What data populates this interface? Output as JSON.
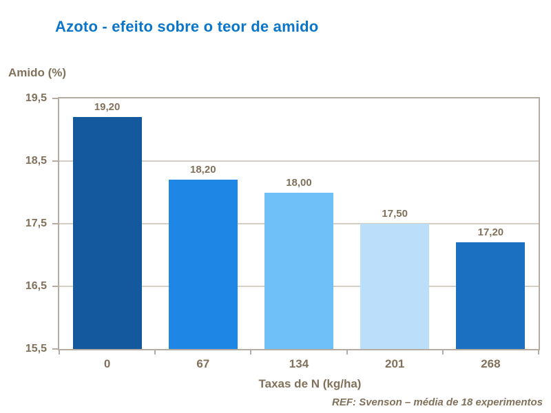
{
  "chart_data": {
    "type": "bar",
    "title": "Azoto - efeito sobre o teor de amido",
    "ylabel": "Amido (%)",
    "xlabel": "Taxas de N (kg/ha)",
    "categories": [
      "0",
      "67",
      "134",
      "201",
      "268"
    ],
    "values": [
      19.2,
      18.2,
      18.0,
      17.5,
      17.2
    ],
    "value_labels": [
      "19,20",
      "18,20",
      "18,00",
      "17,50",
      "17,20"
    ],
    "ytick_labels": [
      "19,5",
      "18,5",
      "17,5",
      "16,5",
      "15,5"
    ],
    "ylim": [
      15.5,
      19.5
    ],
    "grid": true,
    "legend": "none",
    "bar_colors": [
      "#14599E",
      "#1E86E4",
      "#6FBFF9",
      "#BBDFFB",
      "#1B70C2"
    ],
    "footnote": "REF: Svenson – média de 18 experimentos"
  },
  "colors": {
    "title_blue": "#0B76C9",
    "text_brown": "#81705A",
    "axis_border": "#B5ABA0",
    "gridline": "#D5CEC6",
    "background": "#FFFFFF"
  }
}
